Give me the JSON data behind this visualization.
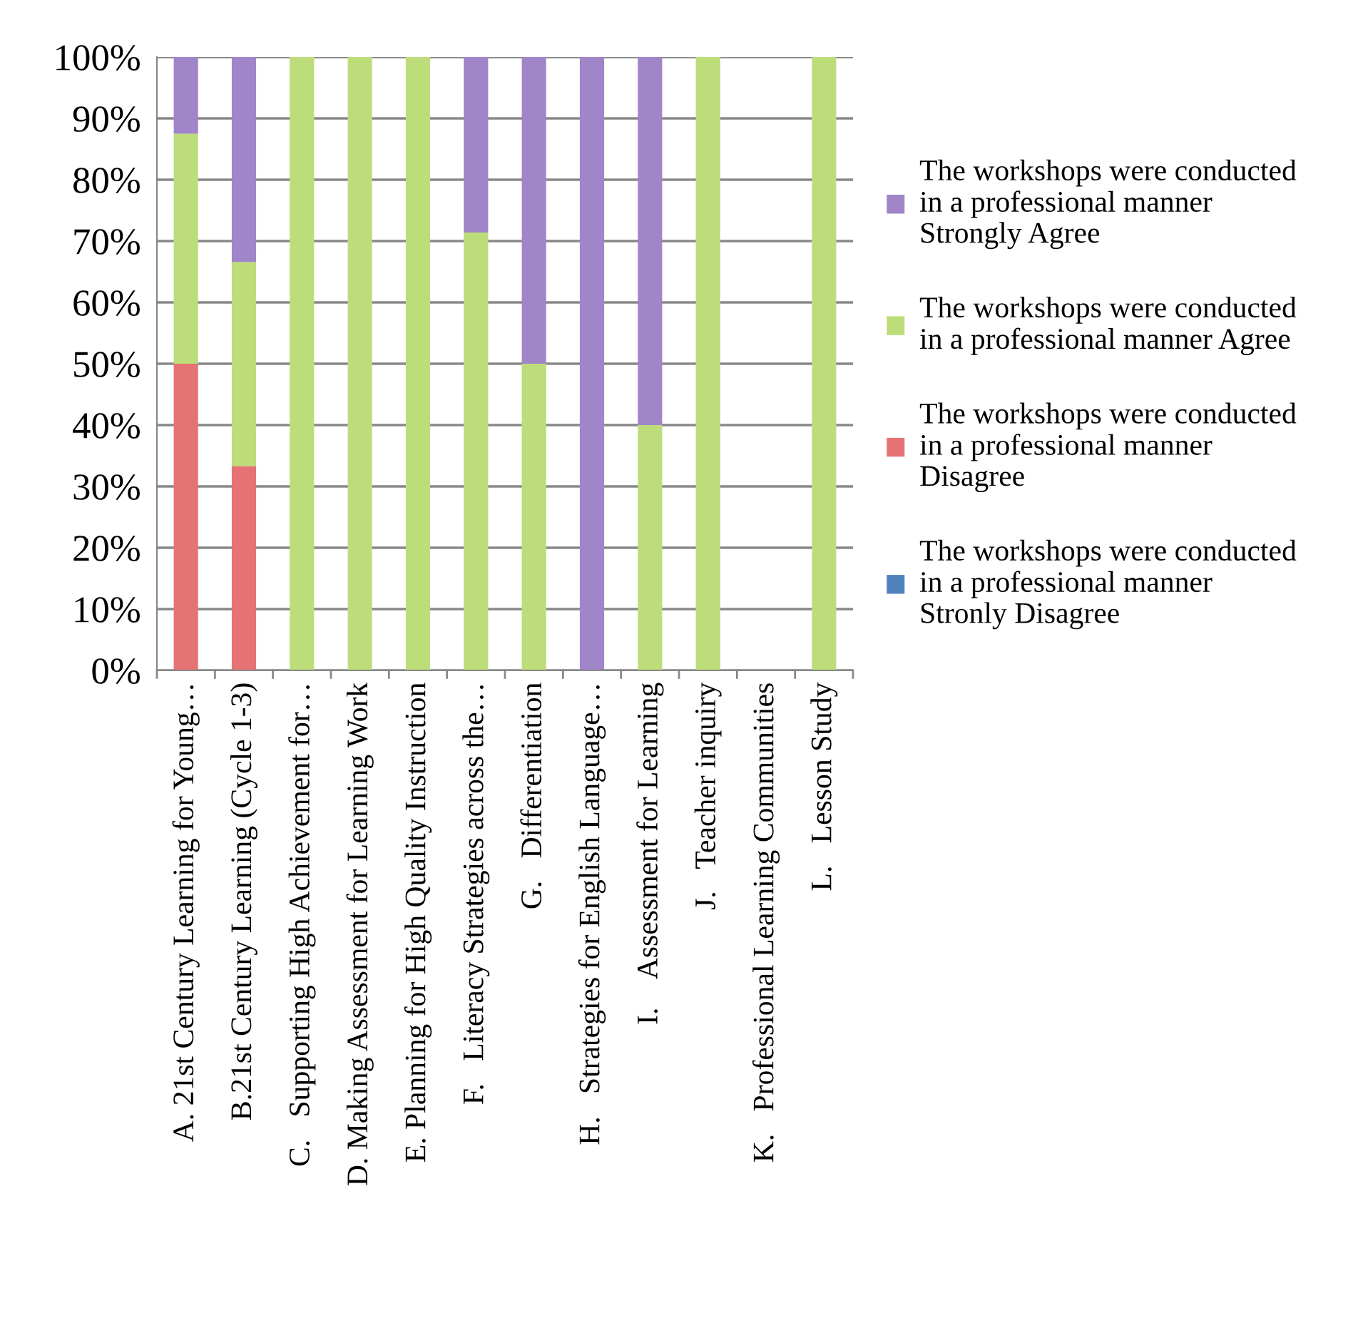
{
  "chart_data": {
    "type": "bar",
    "stacked": true,
    "categories": [
      "A. 21st Century Learning for Young…",
      "B.21st Century Learning (Cycle 1-3)",
      "C.   Supporting High Achievement for…",
      "D. Making Assessment for Learning Work",
      "E. Planning for High Quality Instruction",
      "F.   Literacy Strategies across the…",
      "G.   Differentiation",
      "H.   Strategies for English Language…",
      "I.    Assessment for Learning",
      "J.   Teacher inquiry",
      "K.   Professional Learning Communities",
      "L.   Lesson Study"
    ],
    "series": [
      {
        "name": "The workshops were conducted in a professional manner Stronly Disagree",
        "color": "#4f81bd",
        "values": [
          0,
          0,
          0,
          0,
          0,
          0,
          0,
          0,
          0,
          0,
          null,
          0
        ]
      },
      {
        "name": "The workshops were conducted in a professional manner Disagree",
        "color": "#e57373",
        "values": [
          50,
          33.3,
          0,
          0,
          0,
          0,
          0,
          0,
          0,
          0,
          null,
          0
        ]
      },
      {
        "name": "The workshops were conducted in a professional manner Agree",
        "color": "#bddc7a",
        "values": [
          37.5,
          33.3,
          100,
          100,
          100,
          71.4,
          50,
          0,
          40,
          100,
          null,
          100
        ]
      },
      {
        "name": "The workshops were conducted in a professional manner Strongly Agree",
        "color": "#a085c8",
        "values": [
          12.5,
          33.4,
          0,
          0,
          0,
          28.6,
          50,
          100,
          60,
          0,
          null,
          0
        ]
      }
    ],
    "ylim": [
      0,
      100
    ],
    "yticks": [
      {
        "value": 0,
        "label": "0%"
      },
      {
        "value": 10,
        "label": "10%"
      },
      {
        "value": 20,
        "label": "20%"
      },
      {
        "value": 30,
        "label": "30%"
      },
      {
        "value": 40,
        "label": "40%"
      },
      {
        "value": 50,
        "label": "50%"
      },
      {
        "value": 60,
        "label": "60%"
      },
      {
        "value": 70,
        "label": "70%"
      },
      {
        "value": 80,
        "label": "80%"
      },
      {
        "value": 90,
        "label": "90%"
      },
      {
        "value": 100,
        "label": "100%"
      }
    ],
    "grid": "y",
    "legend": "right"
  }
}
